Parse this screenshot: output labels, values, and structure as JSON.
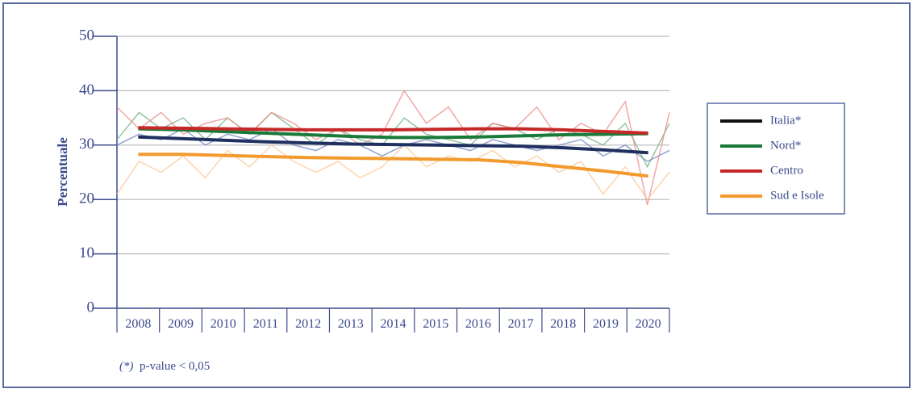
{
  "chart_data": {
    "type": "line",
    "ylabel": "Percentuale",
    "categories": [
      "2008",
      "2009",
      "2010",
      "2011",
      "2012",
      "2013",
      "2014",
      "2015",
      "2016",
      "2017",
      "2018",
      "2019",
      "2020"
    ],
    "ylim": [
      0,
      50
    ],
    "yticks": [
      0,
      10,
      20,
      30,
      40,
      50
    ],
    "grid": true,
    "series": [
      {
        "name": "Italia*",
        "color": "#111111",
        "line_color": "#1f3060",
        "values": [
          31.5,
          31.2,
          30.9,
          30.6,
          30.4,
          30.2,
          30.1,
          30.0,
          29.9,
          29.8,
          29.5,
          29.1,
          28.6
        ],
        "raw_color": "#6c86c2",
        "raw": [
          30,
          32,
          31,
          33,
          30,
          32,
          31,
          33,
          30,
          29,
          31,
          30,
          28,
          30,
          31,
          30,
          29,
          31,
          30,
          29,
          30,
          31,
          28,
          30,
          27,
          29
        ]
      },
      {
        "name": "Nord*",
        "color": "#1a7a3a",
        "values": [
          33.0,
          32.8,
          32.5,
          32.2,
          31.9,
          31.6,
          31.4,
          31.4,
          31.5,
          31.7,
          31.9,
          32.0,
          32.1
        ],
        "raw_color": "#6fb27f",
        "raw": [
          31,
          36,
          33,
          35,
          31,
          35,
          32,
          36,
          33,
          30,
          33,
          31,
          30,
          35,
          32,
          31,
          30,
          34,
          33,
          31,
          33,
          32,
          30,
          34,
          26,
          34
        ]
      },
      {
        "name": "Centro",
        "color": "#c62828",
        "values": [
          33.2,
          33.1,
          33.0,
          32.9,
          32.8,
          32.8,
          32.8,
          32.9,
          33.0,
          33.0,
          32.8,
          32.5,
          32.2
        ],
        "raw_color": "#ee8a8a",
        "raw": [
          37,
          33,
          36,
          32,
          34,
          35,
          32,
          36,
          34,
          31,
          33,
          30,
          32,
          40,
          34,
          37,
          31,
          34,
          33,
          37,
          31,
          34,
          32,
          38,
          19,
          36
        ]
      },
      {
        "name": "Sud e Isole",
        "color": "#f39a2e",
        "values": [
          28.3,
          28.3,
          28.1,
          27.9,
          27.7,
          27.6,
          27.5,
          27.4,
          27.3,
          26.8,
          26.0,
          25.2,
          24.3
        ],
        "raw_color": "#fbc794",
        "raw": [
          21,
          27,
          25,
          28,
          24,
          29,
          26,
          30,
          27,
          25,
          27,
          24,
          26,
          30,
          26,
          28,
          27,
          29,
          26,
          28,
          25,
          27,
          21,
          26,
          20,
          25
        ]
      }
    ],
    "footnote": {
      "marker": "(*)",
      "text": "p-value < 0,05"
    }
  }
}
